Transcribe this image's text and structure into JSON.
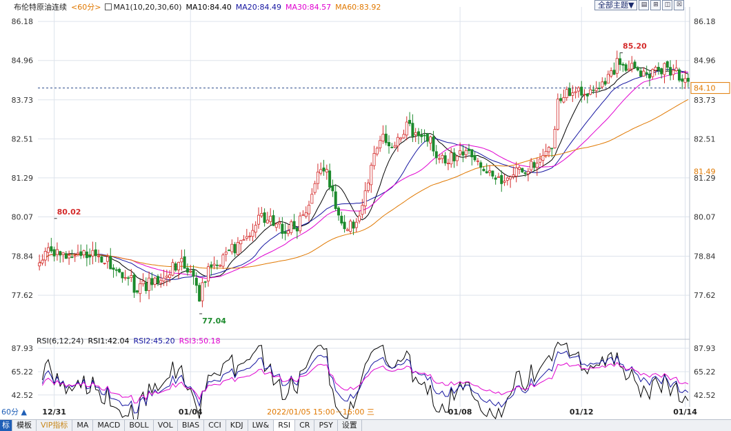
{
  "header": {
    "instrument": "布伦特原油连续",
    "period": "<60分>",
    "ma_set_icon": "ma-settings-icon",
    "ma_set": "MA1(10,20,30,60)",
    "ma10": "MA10:84.40",
    "ma20": "MA20:84.49",
    "ma30": "MA30:84.57",
    "ma60": "MA60:83.92"
  },
  "top_controls": {
    "theme_select": "全部主题▼",
    "icons": [
      "grid-icon",
      "zoom-icon",
      "resize-icon",
      "close-icon"
    ]
  },
  "rsi_header": {
    "label": "RSI(6,12,24)",
    "rsi1": "RSI1:42.04",
    "rsi2": "RSI2:45.20",
    "rsi3": "RSI3:50.18"
  },
  "colors": {
    "up": "#d42a2a",
    "down": "#1c8a2c",
    "ma10": "#000000",
    "ma20": "#1414a0",
    "ma30": "#e000d0",
    "ma60": "#e07800",
    "last_price": "#e07800",
    "grid": "#dde3ec"
  },
  "chart_data": [
    {
      "type": "candlestick",
      "title": "布伦特原油连续 <60分>",
      "y_ticks": [
        86.18,
        84.96,
        83.73,
        82.51,
        81.29,
        80.07,
        78.84,
        77.62
      ],
      "ylim": [
        76.5,
        86.18
      ],
      "x_labels": [
        "12/31",
        "01/04",
        "01/08",
        "01/12",
        "01/14"
      ],
      "current_time_label": "2022/01/05 15:00－16:00 三",
      "last_price": 84.1,
      "marker_price": 81.49,
      "annotations": [
        {
          "text": "80.02",
          "value": 80.02,
          "kind": "high"
        },
        {
          "text": "77.04",
          "value": 77.04,
          "kind": "low"
        },
        {
          "text": "85.20",
          "value": 85.2,
          "kind": "high"
        }
      ],
      "close_anchors": [
        [
          0,
          78.55
        ],
        [
          3,
          78.95
        ],
        [
          6,
          79.05
        ],
        [
          10,
          78.75
        ],
        [
          14,
          79.05
        ],
        [
          18,
          78.9
        ],
        [
          22,
          78.8
        ],
        [
          26,
          78.45
        ],
        [
          30,
          78.2
        ],
        [
          33,
          77.75
        ],
        [
          36,
          77.95
        ],
        [
          40,
          78.15
        ],
        [
          44,
          78.45
        ],
        [
          48,
          78.7
        ],
        [
          52,
          78.0
        ],
        [
          54,
          77.45
        ],
        [
          56,
          78.2
        ],
        [
          60,
          78.65
        ],
        [
          64,
          78.95
        ],
        [
          68,
          79.25
        ],
        [
          72,
          79.7
        ],
        [
          75,
          80.15
        ],
        [
          78,
          79.9
        ],
        [
          82,
          79.65
        ],
        [
          86,
          79.75
        ],
        [
          90,
          80.05
        ],
        [
          93,
          81.3
        ],
        [
          97,
          81.45
        ],
        [
          100,
          80.45
        ],
        [
          103,
          79.8
        ],
        [
          106,
          79.7
        ],
        [
          110,
          80.7
        ],
        [
          113,
          81.9
        ],
        [
          116,
          82.55
        ],
        [
          120,
          82.35
        ],
        [
          124,
          82.85
        ],
        [
          128,
          82.7
        ],
        [
          132,
          82.45
        ],
        [
          136,
          81.8
        ],
        [
          140,
          81.9
        ],
        [
          144,
          82.1
        ],
        [
          148,
          81.95
        ],
        [
          152,
          81.35
        ],
        [
          156,
          81.1
        ],
        [
          160,
          81.4
        ],
        [
          164,
          81.45
        ],
        [
          167,
          81.8
        ],
        [
          170,
          81.95
        ],
        [
          173,
          82.2
        ],
        [
          175,
          83.55
        ],
        [
          178,
          83.9
        ],
        [
          182,
          83.95
        ],
        [
          186,
          83.85
        ],
        [
          190,
          84.2
        ],
        [
          193,
          84.6
        ],
        [
          196,
          84.95
        ],
        [
          200,
          84.75
        ],
        [
          203,
          84.55
        ],
        [
          206,
          84.6
        ],
        [
          210,
          84.75
        ],
        [
          214,
          84.65
        ],
        [
          216,
          84.45
        ],
        [
          219,
          84.1
        ]
      ],
      "series": [
        {
          "name": "MA10",
          "value": 84.4
        },
        {
          "name": "MA20",
          "value": 84.49
        },
        {
          "name": "MA30",
          "value": 84.57
        },
        {
          "name": "MA60",
          "value": 83.92
        }
      ]
    },
    {
      "type": "line",
      "title": "RSI(6,12,24)",
      "y_ticks": [
        87.93,
        65.22,
        42.52
      ],
      "ylim": [
        31,
        94
      ],
      "series": [
        {
          "name": "RSI1",
          "value": 42.04
        },
        {
          "name": "RSI2",
          "value": 45.2
        },
        {
          "name": "RSI3",
          "value": 50.18
        }
      ]
    }
  ],
  "tabs": [
    "标",
    "模板",
    "VIP指标",
    "MA",
    "MACD",
    "BOLL",
    "VOL",
    "BIAS",
    "CCI",
    "KDJ",
    "LW&",
    "RSI",
    "CR",
    "PSY",
    "设置"
  ],
  "period_badge": "60分 ▲"
}
